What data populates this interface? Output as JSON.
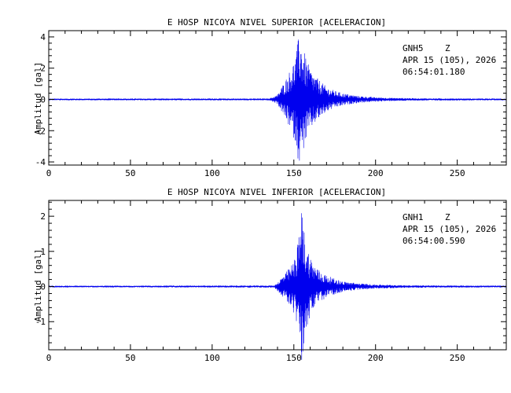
{
  "colors": {
    "trace": "#0000ee",
    "axis": "#000000",
    "background": "#ffffff"
  },
  "chart_data": [
    {
      "type": "line",
      "title": "E HOSP NICOYA NIVEL SUPERIOR [ACELERACION]",
      "xlabel": "",
      "ylabel": "Amplitud [gal]",
      "xlim": [
        0,
        280
      ],
      "ylim": [
        -4.2,
        4.4
      ],
      "xticks": [
        0,
        50,
        100,
        150,
        200,
        250
      ],
      "yticks": [
        -4,
        -2,
        0,
        2,
        4
      ],
      "info": {
        "station": "GNH5",
        "component": "Z",
        "date": "APR 15 (105), 2026",
        "time": "06:54:01.180"
      },
      "series": [
        {
          "x": [
            0,
            135,
            140,
            143,
            146,
            149,
            151,
            152.5,
            153.5,
            155,
            157,
            159,
            161,
            164,
            167,
            170,
            175,
            180,
            185,
            190,
            200,
            210,
            230,
            260,
            280
          ],
          "envelope": [
            0.05,
            0.06,
            0.3,
            0.9,
            1.5,
            2.2,
            2.8,
            3.8,
            4.1,
            3.6,
            2.8,
            2.2,
            1.8,
            1.4,
            1.1,
            0.8,
            0.55,
            0.4,
            0.3,
            0.22,
            0.14,
            0.1,
            0.07,
            0.06,
            0.05
          ]
        }
      ]
    },
    {
      "type": "line",
      "title": "E HOSP NICOYA NIVEL INFERIOR [ACELERACION]",
      "xlabel": "",
      "ylabel": "Amplitud [gal]",
      "xlim": [
        0,
        280
      ],
      "ylim": [
        -1.8,
        2.45
      ],
      "xticks": [
        0,
        50,
        100,
        150,
        200,
        250
      ],
      "yticks": [
        -1,
        0,
        1,
        2
      ],
      "info": {
        "station": "GNH1",
        "component": "Z",
        "date": "APR 15 (105), 2026",
        "time": "06:54:00.590"
      },
      "series": [
        {
          "x": [
            0,
            138,
            140,
            143,
            146,
            149,
            151,
            153,
            155,
            156,
            158,
            160,
            163,
            166,
            170,
            175,
            180,
            190,
            200,
            215,
            240,
            280
          ],
          "envelope": [
            0.02,
            0.03,
            0.12,
            0.3,
            0.45,
            0.65,
            0.9,
            1.4,
            2.3,
            1.7,
            1.2,
            0.85,
            0.6,
            0.45,
            0.32,
            0.22,
            0.15,
            0.09,
            0.06,
            0.04,
            0.03,
            0.025
          ]
        }
      ]
    }
  ]
}
